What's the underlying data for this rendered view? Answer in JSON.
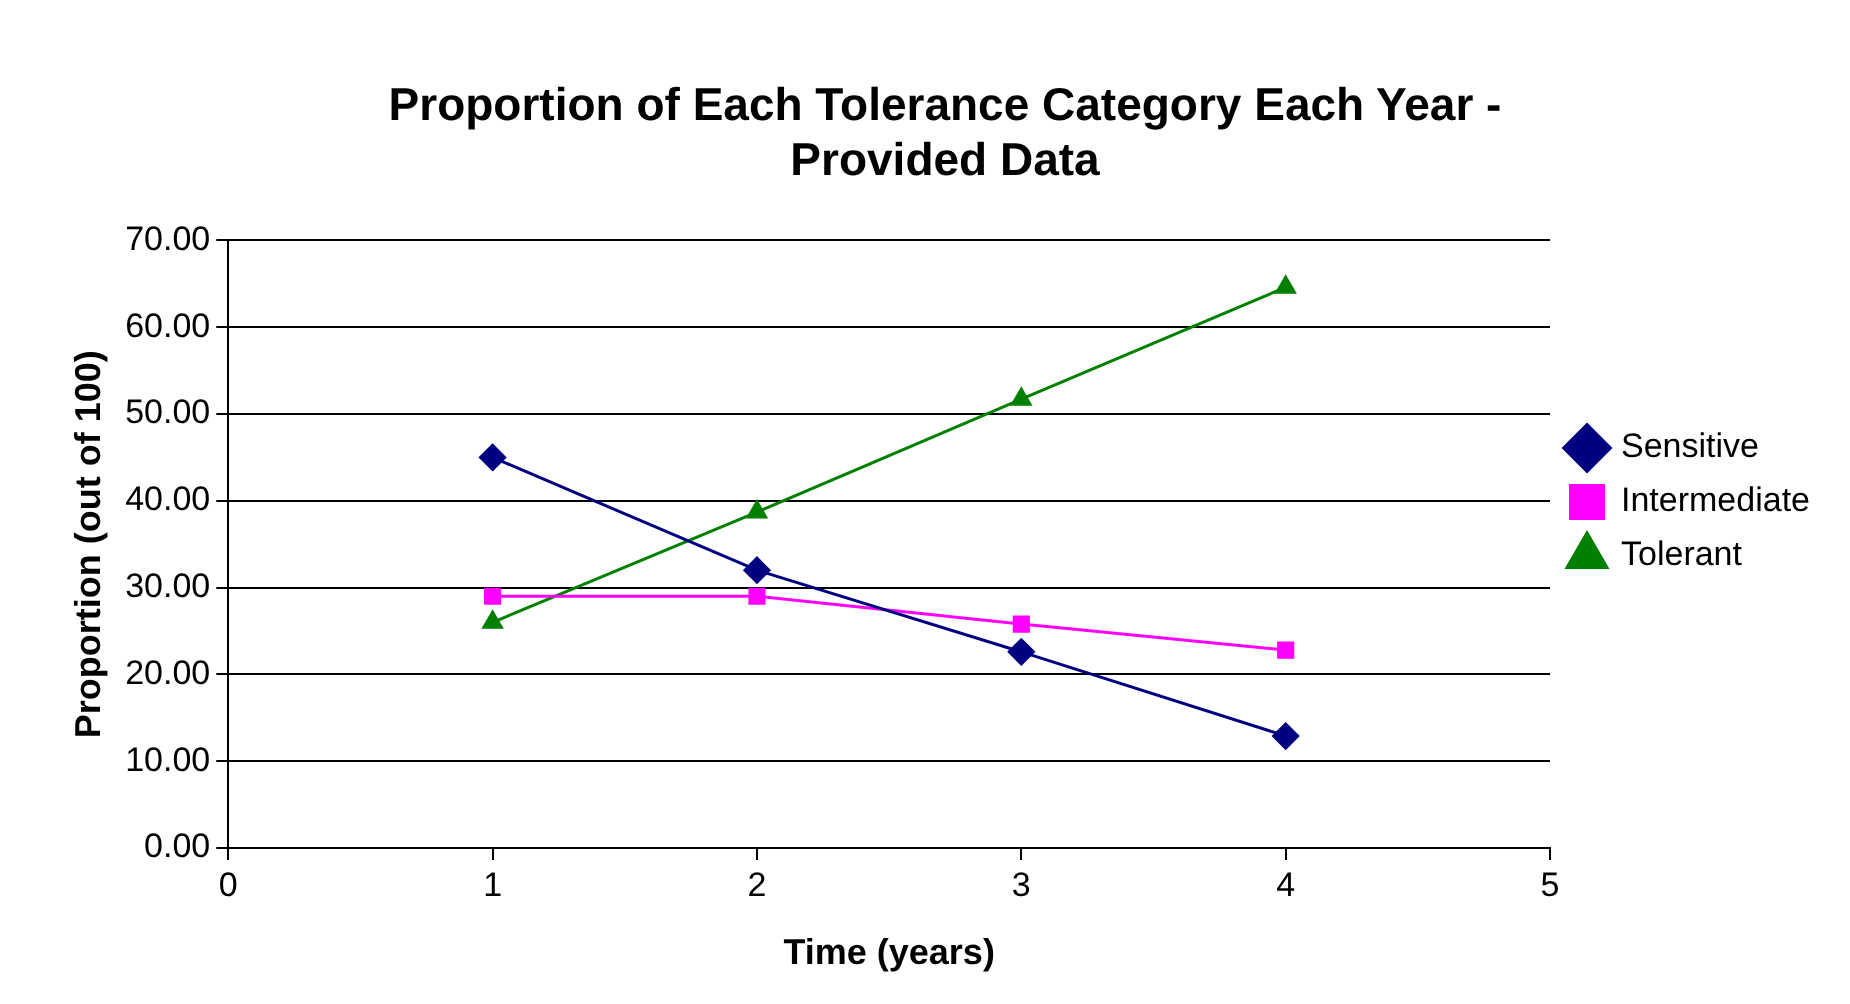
{
  "chart_data": {
    "type": "line",
    "title": "Proportion of Each Tolerance Category Each Year - Provided Data",
    "xlabel": "Time (years)",
    "ylabel": "Proportion (out of 100)",
    "x": [
      1,
      2,
      3,
      4
    ],
    "series": [
      {
        "name": "Sensitive",
        "color": "#000080",
        "marker": "diamond",
        "values": [
          45,
          32,
          22.6,
          12.9
        ]
      },
      {
        "name": "Intermediate",
        "color": "#ff00ff",
        "marker": "square",
        "values": [
          29,
          29,
          25.8,
          22.8
        ]
      },
      {
        "name": "Tolerant",
        "color": "#008000",
        "marker": "triangle",
        "values": [
          26,
          38.7,
          51.7,
          64.6
        ]
      }
    ],
    "xlim": [
      0,
      5
    ],
    "xticks": [
      0,
      1,
      2,
      3,
      4,
      5
    ],
    "ylim": [
      0,
      70
    ],
    "yticks": [
      {
        "value": 0,
        "label": "0.00"
      },
      {
        "value": 10,
        "label": "10.00"
      },
      {
        "value": 20,
        "label": "20.00"
      },
      {
        "value": 30,
        "label": "30.00"
      },
      {
        "value": 40,
        "label": "40.00"
      },
      {
        "value": 50,
        "label": "50.00"
      },
      {
        "value": 60,
        "label": "60.00"
      },
      {
        "value": 70,
        "label": "70.00"
      }
    ],
    "grid": "y",
    "legend": "right",
    "line_style": "solid"
  }
}
